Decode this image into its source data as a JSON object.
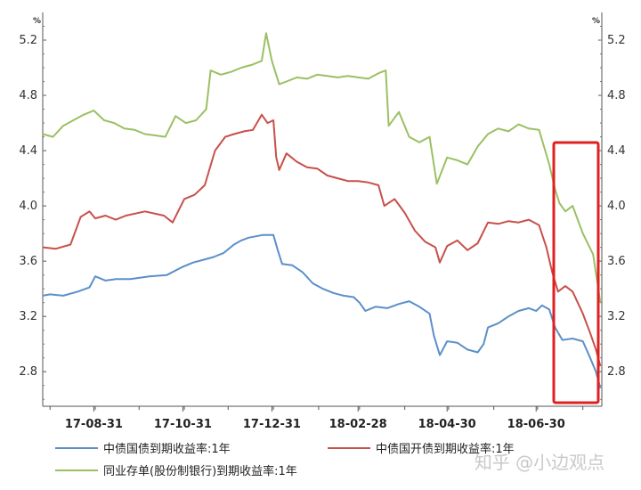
{
  "chart_data": {
    "type": "line",
    "y_unit": "%",
    "ylim": [
      2.55,
      5.4
    ],
    "y_ticks": [
      "5.2",
      "4.8",
      "4.4",
      "4.0",
      "3.6",
      "3.2",
      "2.8"
    ],
    "x_ticks": [
      "17-08-31",
      "17-10-31",
      "17-12-31",
      "18-02-28",
      "18-04-30",
      "18-06-30"
    ],
    "grid": false,
    "legend_position": "bottom",
    "highlight_box_color": "#e02020",
    "series": [
      {
        "name": "中债国债到期收益率:1年",
        "color": "#5b8fc9",
        "points": [
          [
            "2017-07-27",
            3.35
          ],
          [
            "2017-08-01",
            3.36
          ],
          [
            "2017-08-10",
            3.35
          ],
          [
            "2017-08-20",
            3.38
          ],
          [
            "2017-08-28",
            3.41
          ],
          [
            "2017-09-01",
            3.49
          ],
          [
            "2017-09-08",
            3.46
          ],
          [
            "2017-09-15",
            3.47
          ],
          [
            "2017-09-25",
            3.47
          ],
          [
            "2017-10-08",
            3.49
          ],
          [
            "2017-10-20",
            3.5
          ],
          [
            "2017-10-31",
            3.56
          ],
          [
            "2017-11-07",
            3.59
          ],
          [
            "2017-11-14",
            3.61
          ],
          [
            "2017-11-21",
            3.63
          ],
          [
            "2017-11-28",
            3.66
          ],
          [
            "2017-12-05",
            3.72
          ],
          [
            "2017-12-10",
            3.75
          ],
          [
            "2017-12-15",
            3.77
          ],
          [
            "2017-12-25",
            3.79
          ],
          [
            "2018-01-01",
            3.79
          ],
          [
            "2018-01-04",
            3.68
          ],
          [
            "2018-01-07",
            3.58
          ],
          [
            "2018-01-14",
            3.57
          ],
          [
            "2018-01-21",
            3.52
          ],
          [
            "2018-01-28",
            3.44
          ],
          [
            "2018-02-04",
            3.4
          ],
          [
            "2018-02-11",
            3.37
          ],
          [
            "2018-02-18",
            3.35
          ],
          [
            "2018-02-25",
            3.34
          ],
          [
            "2018-03-01",
            3.3
          ],
          [
            "2018-03-05",
            3.24
          ],
          [
            "2018-03-12",
            3.27
          ],
          [
            "2018-03-20",
            3.26
          ],
          [
            "2018-03-28",
            3.29
          ],
          [
            "2018-04-04",
            3.31
          ],
          [
            "2018-04-11",
            3.27
          ],
          [
            "2018-04-18",
            3.22
          ],
          [
            "2018-04-21",
            3.06
          ],
          [
            "2018-04-25",
            2.92
          ],
          [
            "2018-04-30",
            3.02
          ],
          [
            "2018-05-07",
            3.01
          ],
          [
            "2018-05-14",
            2.96
          ],
          [
            "2018-05-21",
            2.94
          ],
          [
            "2018-05-25",
            3.0
          ],
          [
            "2018-05-28",
            3.12
          ],
          [
            "2018-06-04",
            3.15
          ],
          [
            "2018-06-11",
            3.2
          ],
          [
            "2018-06-18",
            3.24
          ],
          [
            "2018-06-25",
            3.26
          ],
          [
            "2018-06-30",
            3.24
          ],
          [
            "2018-07-04",
            3.28
          ],
          [
            "2018-07-09",
            3.25
          ],
          [
            "2018-07-13",
            3.12
          ],
          [
            "2018-07-18",
            3.03
          ],
          [
            "2018-07-25",
            3.04
          ],
          [
            "2018-08-01",
            3.02
          ],
          [
            "2018-08-06",
            2.9
          ],
          [
            "2018-08-10",
            2.8
          ],
          [
            "2018-08-13",
            2.68
          ]
        ]
      },
      {
        "name": "中债国开债到期收益率:1年",
        "color": "#c8504a",
        "points": [
          [
            "2017-07-27",
            3.7
          ],
          [
            "2017-08-05",
            3.69
          ],
          [
            "2017-08-15",
            3.72
          ],
          [
            "2017-08-22",
            3.92
          ],
          [
            "2017-08-28",
            3.96
          ],
          [
            "2017-09-01",
            3.91
          ],
          [
            "2017-09-08",
            3.93
          ],
          [
            "2017-09-15",
            3.9
          ],
          [
            "2017-09-22",
            3.93
          ],
          [
            "2017-10-05",
            3.96
          ],
          [
            "2017-10-18",
            3.93
          ],
          [
            "2017-10-24",
            3.88
          ],
          [
            "2017-11-01",
            4.05
          ],
          [
            "2017-11-08",
            4.08
          ],
          [
            "2017-11-15",
            4.15
          ],
          [
            "2017-11-22",
            4.4
          ],
          [
            "2017-11-29",
            4.5
          ],
          [
            "2017-12-05",
            4.52
          ],
          [
            "2017-12-12",
            4.54
          ],
          [
            "2017-12-18",
            4.55
          ],
          [
            "2017-12-24",
            4.66
          ],
          [
            "2017-12-28",
            4.6
          ],
          [
            "2018-01-01",
            4.62
          ],
          [
            "2018-01-03",
            4.35
          ],
          [
            "2018-01-05",
            4.26
          ],
          [
            "2018-01-10",
            4.38
          ],
          [
            "2018-01-17",
            4.32
          ],
          [
            "2018-01-24",
            4.28
          ],
          [
            "2018-01-31",
            4.27
          ],
          [
            "2018-02-07",
            4.22
          ],
          [
            "2018-02-14",
            4.2
          ],
          [
            "2018-02-21",
            4.18
          ],
          [
            "2018-02-28",
            4.18
          ],
          [
            "2018-03-07",
            4.17
          ],
          [
            "2018-03-14",
            4.15
          ],
          [
            "2018-03-18",
            4.0
          ],
          [
            "2018-03-25",
            4.05
          ],
          [
            "2018-04-01",
            3.95
          ],
          [
            "2018-04-08",
            3.82
          ],
          [
            "2018-04-15",
            3.74
          ],
          [
            "2018-04-22",
            3.7
          ],
          [
            "2018-04-25",
            3.59
          ],
          [
            "2018-04-30",
            3.71
          ],
          [
            "2018-05-07",
            3.75
          ],
          [
            "2018-05-14",
            3.68
          ],
          [
            "2018-05-21",
            3.73
          ],
          [
            "2018-05-28",
            3.88
          ],
          [
            "2018-06-04",
            3.87
          ],
          [
            "2018-06-11",
            3.89
          ],
          [
            "2018-06-18",
            3.88
          ],
          [
            "2018-06-25",
            3.9
          ],
          [
            "2018-07-02",
            3.86
          ],
          [
            "2018-07-07",
            3.7
          ],
          [
            "2018-07-11",
            3.52
          ],
          [
            "2018-07-15",
            3.38
          ],
          [
            "2018-07-20",
            3.42
          ],
          [
            "2018-07-25",
            3.38
          ],
          [
            "2018-08-01",
            3.22
          ],
          [
            "2018-08-06",
            3.08
          ],
          [
            "2018-08-10",
            2.96
          ],
          [
            "2018-08-13",
            2.84
          ]
        ]
      },
      {
        "name": "同业存单(股份制银行)到期收益率:1年",
        "color": "#9bc063",
        "points": [
          [
            "2017-07-27",
            4.52
          ],
          [
            "2017-08-03",
            4.5
          ],
          [
            "2017-08-10",
            4.58
          ],
          [
            "2017-08-17",
            4.62
          ],
          [
            "2017-08-24",
            4.66
          ],
          [
            "2017-08-31",
            4.69
          ],
          [
            "2017-09-07",
            4.62
          ],
          [
            "2017-09-14",
            4.6
          ],
          [
            "2017-09-21",
            4.56
          ],
          [
            "2017-09-28",
            4.55
          ],
          [
            "2017-10-05",
            4.52
          ],
          [
            "2017-10-12",
            4.51
          ],
          [
            "2017-10-19",
            4.5
          ],
          [
            "2017-10-26",
            4.65
          ],
          [
            "2017-11-02",
            4.6
          ],
          [
            "2017-11-09",
            4.62
          ],
          [
            "2017-11-16",
            4.7
          ],
          [
            "2017-11-19",
            4.98
          ],
          [
            "2017-11-26",
            4.95
          ],
          [
            "2017-12-03",
            4.97
          ],
          [
            "2017-12-10",
            5.0
          ],
          [
            "2017-12-17",
            5.02
          ],
          [
            "2017-12-24",
            5.05
          ],
          [
            "2017-12-27",
            5.25
          ],
          [
            "2017-12-31",
            5.05
          ],
          [
            "2018-01-05",
            4.88
          ],
          [
            "2018-01-10",
            4.9
          ],
          [
            "2018-01-17",
            4.93
          ],
          [
            "2018-01-24",
            4.92
          ],
          [
            "2018-01-31",
            4.95
          ],
          [
            "2018-02-07",
            4.94
          ],
          [
            "2018-02-14",
            4.93
          ],
          [
            "2018-02-21",
            4.94
          ],
          [
            "2018-02-28",
            4.93
          ],
          [
            "2018-03-07",
            4.92
          ],
          [
            "2018-03-14",
            4.96
          ],
          [
            "2018-03-19",
            4.98
          ],
          [
            "2018-03-21",
            4.58
          ],
          [
            "2018-03-28",
            4.68
          ],
          [
            "2018-04-04",
            4.5
          ],
          [
            "2018-04-11",
            4.46
          ],
          [
            "2018-04-18",
            4.5
          ],
          [
            "2018-04-23",
            4.16
          ],
          [
            "2018-04-30",
            4.35
          ],
          [
            "2018-05-07",
            4.33
          ],
          [
            "2018-05-14",
            4.3
          ],
          [
            "2018-05-21",
            4.43
          ],
          [
            "2018-05-28",
            4.52
          ],
          [
            "2018-06-04",
            4.56
          ],
          [
            "2018-06-11",
            4.54
          ],
          [
            "2018-06-18",
            4.59
          ],
          [
            "2018-06-25",
            4.56
          ],
          [
            "2018-07-02",
            4.55
          ],
          [
            "2018-07-09",
            4.3
          ],
          [
            "2018-07-13",
            4.12
          ],
          [
            "2018-07-16",
            4.02
          ],
          [
            "2018-07-20",
            3.96
          ],
          [
            "2018-07-25",
            4.0
          ],
          [
            "2018-08-01",
            3.8
          ],
          [
            "2018-08-08",
            3.65
          ],
          [
            "2018-08-13",
            3.3
          ]
        ]
      }
    ]
  },
  "watermark": "知乎 @小边观点"
}
